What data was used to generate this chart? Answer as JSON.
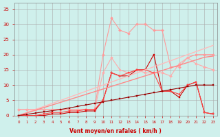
{
  "x": [
    0,
    1,
    2,
    3,
    4,
    5,
    6,
    7,
    8,
    9,
    10,
    11,
    12,
    13,
    14,
    15,
    16,
    17,
    18,
    19,
    20,
    21,
    22,
    23
  ],
  "background_color": "#cff0ec",
  "grid_color": "#aaaaaa",
  "xlabel": "Vent moyen/en rafales ( km/h )",
  "xlabel_color": "#cc0000",
  "yticks": [
    0,
    5,
    10,
    15,
    20,
    25,
    30,
    35
  ],
  "ylim": [
    0,
    37
  ],
  "xlim": [
    -0.5,
    23.5
  ],
  "series": [
    {
      "color": "#ff9999",
      "marker": "D",
      "markersize": 2,
      "linewidth": 0.8,
      "y": [
        2,
        2,
        2,
        2,
        2,
        2,
        2,
        2,
        2,
        2,
        20,
        32,
        28,
        27,
        30,
        30,
        28,
        28,
        16,
        16,
        19,
        20,
        20,
        20
      ]
    },
    {
      "color": "#ffaaaa",
      "marker": "D",
      "markersize": 2,
      "linewidth": 0.8,
      "y": [
        2,
        2,
        2,
        2,
        2,
        2,
        2,
        2,
        2,
        2,
        14,
        19,
        15,
        14,
        15,
        14,
        14,
        14,
        13,
        17,
        19,
        17,
        16,
        15
      ]
    },
    {
      "color": "#cc0000",
      "marker": "s",
      "markersize": 2,
      "linewidth": 0.8,
      "y": [
        0,
        0,
        0,
        0,
        0.5,
        0.5,
        1,
        1,
        1.5,
        1.5,
        5,
        14,
        13,
        13,
        15,
        15,
        20,
        8,
        8,
        6,
        10,
        11,
        1,
        0.5
      ]
    },
    {
      "color": "#ff4444",
      "marker": "s",
      "markersize": 2,
      "linewidth": 0.8,
      "y": [
        0,
        0,
        0,
        0.5,
        1,
        1,
        1.5,
        1.5,
        2,
        2,
        5,
        14,
        13,
        14,
        15,
        15,
        14,
        8,
        8,
        7,
        10,
        11,
        1,
        0.5
      ]
    },
    {
      "color": "#ffbbbb",
      "marker": null,
      "markersize": 0,
      "linewidth": 1.0,
      "y": [
        0,
        1,
        2,
        3,
        4,
        5,
        6,
        7,
        8,
        9,
        10,
        11,
        12,
        13,
        14,
        15,
        16,
        17,
        18,
        19,
        20,
        21,
        22,
        23
      ]
    },
    {
      "color": "#ff8888",
      "marker": null,
      "markersize": 0,
      "linewidth": 1.0,
      "y": [
        0,
        0.87,
        1.74,
        2.61,
        3.48,
        4.35,
        5.22,
        6.09,
        6.96,
        7.83,
        8.7,
        9.57,
        10.43,
        11.3,
        12.17,
        13.04,
        13.91,
        14.78,
        15.65,
        16.52,
        17.39,
        18.26,
        19.13,
        19.5
      ]
    },
    {
      "color": "#990000",
      "marker": "s",
      "markersize": 2,
      "linewidth": 0.8,
      "y": [
        0,
        0.4,
        0.8,
        1.2,
        1.6,
        2.0,
        2.5,
        3.0,
        3.5,
        4.0,
        4.5,
        5.0,
        5.5,
        6.0,
        6.5,
        7.0,
        7.5,
        8.0,
        8.5,
        9.0,
        9.5,
        10.0,
        10.0,
        10.0
      ]
    }
  ]
}
